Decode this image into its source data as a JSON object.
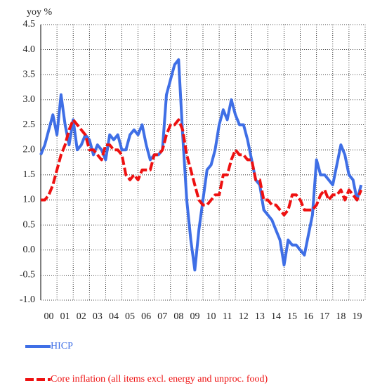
{
  "chart_data": {
    "type": "line",
    "ylabel": "yoy %",
    "x": [
      2000,
      2000.25,
      2000.5,
      2000.75,
      2001,
      2001.25,
      2001.5,
      2001.75,
      2002,
      2002.25,
      2002.5,
      2002.75,
      2003,
      2003.25,
      2003.5,
      2003.75,
      2004,
      2004.25,
      2004.5,
      2004.75,
      2005,
      2005.25,
      2005.5,
      2005.75,
      2006,
      2006.25,
      2006.5,
      2006.75,
      2007,
      2007.25,
      2007.5,
      2007.75,
      2008,
      2008.25,
      2008.5,
      2008.75,
      2009,
      2009.25,
      2009.5,
      2009.75,
      2010,
      2010.25,
      2010.5,
      2010.75,
      2011,
      2011.25,
      2011.5,
      2011.75,
      2012,
      2012.25,
      2012.5,
      2012.75,
      2013,
      2013.25,
      2013.5,
      2013.75,
      2014,
      2014.25,
      2014.5,
      2014.75,
      2015,
      2015.25,
      2015.5,
      2015.75,
      2016,
      2016.25,
      2016.5,
      2016.75,
      2017,
      2017.25,
      2017.5,
      2017.75,
      2018,
      2018.25,
      2018.5,
      2018.75,
      2019,
      2019.25,
      2019.5,
      2019.75
    ],
    "series": [
      {
        "name": "HICP",
        "color": "#3f6fe6",
        "dashed": false,
        "values": [
          1.9,
          2.1,
          2.4,
          2.7,
          2.3,
          3.1,
          2.5,
          2.1,
          2.6,
          2.0,
          2.1,
          2.3,
          2.2,
          1.9,
          2.1,
          2.0,
          1.8,
          2.3,
          2.2,
          2.3,
          2.0,
          2.0,
          2.3,
          2.4,
          2.3,
          2.5,
          2.1,
          1.8,
          1.9,
          1.9,
          2.0,
          3.1,
          3.4,
          3.7,
          3.8,
          2.3,
          1.0,
          0.2,
          -0.4,
          0.4,
          1.0,
          1.6,
          1.7,
          2.0,
          2.5,
          2.8,
          2.6,
          3.0,
          2.7,
          2.5,
          2.5,
          2.2,
          1.8,
          1.4,
          1.3,
          0.8,
          0.7,
          0.6,
          0.4,
          0.2,
          -0.3,
          0.2,
          0.1,
          0.1,
          0.0,
          -0.1,
          0.3,
          0.7,
          1.8,
          1.5,
          1.5,
          1.4,
          1.3,
          1.7,
          2.1,
          1.9,
          1.5,
          1.4,
          1.0,
          1.3
        ]
      },
      {
        "name": "Core inflation (all items excl. energy and unproc. food)",
        "color": "#ee1111",
        "dashed": true,
        "values": [
          1.0,
          1.0,
          1.1,
          1.3,
          1.6,
          1.9,
          2.1,
          2.4,
          2.6,
          2.5,
          2.4,
          2.3,
          2.0,
          2.0,
          1.9,
          1.8,
          2.1,
          2.1,
          2.0,
          2.0,
          1.9,
          1.5,
          1.4,
          1.5,
          1.4,
          1.6,
          1.6,
          1.6,
          1.9,
          1.9,
          2.0,
          2.3,
          2.5,
          2.5,
          2.6,
          2.4,
          1.9,
          1.6,
          1.3,
          1.0,
          0.9,
          0.9,
          1.0,
          1.1,
          1.1,
          1.5,
          1.5,
          1.8,
          2.0,
          1.9,
          1.9,
          1.8,
          1.8,
          1.4,
          1.4,
          1.0,
          1.0,
          0.9,
          0.9,
          0.8,
          0.7,
          0.8,
          1.1,
          1.1,
          1.0,
          0.8,
          0.8,
          0.8,
          0.9,
          1.1,
          1.2,
          1.0,
          1.1,
          1.1,
          1.2,
          1.0,
          1.2,
          1.1,
          1.0,
          1.2
        ]
      }
    ],
    "xlim": [
      2000,
      2020
    ],
    "xticks": [
      {
        "value": 2000,
        "label": "00"
      },
      {
        "value": 2001,
        "label": "01"
      },
      {
        "value": 2002,
        "label": "02"
      },
      {
        "value": 2003,
        "label": "03"
      },
      {
        "value": 2004,
        "label": "04"
      },
      {
        "value": 2005,
        "label": "05"
      },
      {
        "value": 2006,
        "label": "06"
      },
      {
        "value": 2007,
        "label": "07"
      },
      {
        "value": 2008,
        "label": "08"
      },
      {
        "value": 2009,
        "label": "09"
      },
      {
        "value": 2010,
        "label": "10"
      },
      {
        "value": 2011,
        "label": "11"
      },
      {
        "value": 2012,
        "label": "12"
      },
      {
        "value": 2013,
        "label": "13"
      },
      {
        "value": 2014,
        "label": "14"
      },
      {
        "value": 2015,
        "label": "15"
      },
      {
        "value": 2016,
        "label": "16"
      },
      {
        "value": 2017,
        "label": "17"
      },
      {
        "value": 2018,
        "label": "18"
      },
      {
        "value": 2019,
        "label": "19"
      }
    ],
    "ylim": [
      -1,
      4.5
    ],
    "yticks": [
      {
        "value": -1,
        "label": "-1.0"
      },
      -0.5,
      {
        "value": 0,
        "label": "0.0"
      },
      0.5,
      {
        "value": 1,
        "label": "1.0"
      },
      1.5,
      {
        "value": 2,
        "label": "2.0"
      },
      2.5,
      {
        "value": 3,
        "label": "3.0"
      },
      3.5,
      {
        "value": 4,
        "label": "4.0"
      },
      4.5
    ],
    "grid": true
  }
}
